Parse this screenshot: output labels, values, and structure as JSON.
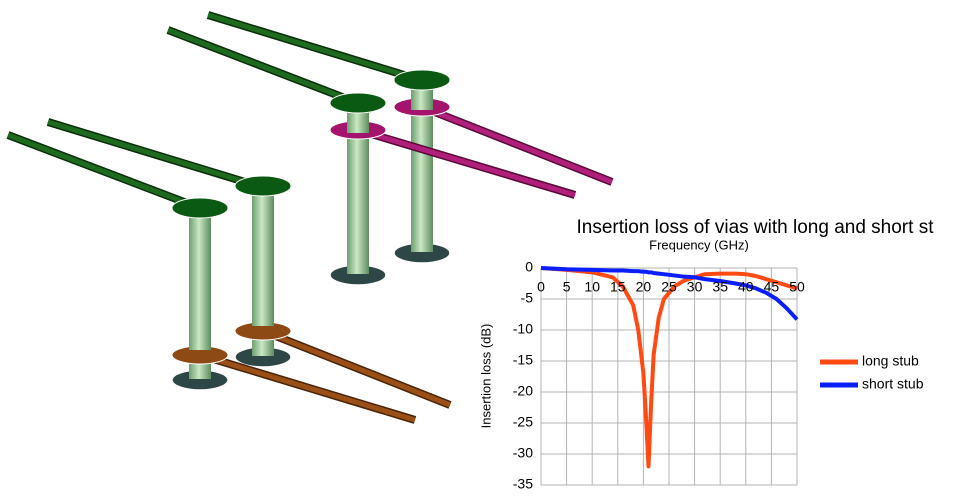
{
  "chart_data": {
    "type": "line",
    "title": "Insertion loss of vias with long and short st",
    "x_label": "Frequency (GHz)",
    "y_label": "Insertion loss (dB)",
    "x": [
      0,
      5,
      10,
      14,
      16,
      18,
      19,
      20,
      20.5,
      21,
      21.5,
      22,
      23,
      24,
      26,
      28,
      30,
      32,
      35,
      38,
      40,
      42,
      44,
      46,
      48,
      50
    ],
    "series": [
      {
        "name": "long stub",
        "color": "#ff4a12",
        "values": [
          0,
          -0.3,
          -0.7,
          -1.5,
          -3,
          -6,
          -10,
          -17,
          -24,
          -32,
          -22,
          -14,
          -8,
          -5,
          -3,
          -2,
          -1.5,
          -1,
          -0.9,
          -0.9,
          -1,
          -1.3,
          -1.8,
          -2.3,
          -2.8,
          -3.3
        ]
      },
      {
        "name": "short stub",
        "color": "#0a1eff",
        "values": [
          0,
          -0.2,
          -0.3,
          -0.4,
          -0.4,
          -0.5,
          -0.5,
          -0.6,
          -0.6,
          -0.7,
          -0.7,
          -0.8,
          -0.9,
          -1,
          -1.2,
          -1.4,
          -1.5,
          -1.8,
          -2.1,
          -2.5,
          -2.8,
          -3.3,
          -4,
          -5,
          -6.5,
          -8.3
        ]
      }
    ],
    "xlim": [
      0,
      50
    ],
    "xticks": [
      0,
      5,
      10,
      15,
      20,
      25,
      30,
      35,
      40,
      45,
      50
    ],
    "ylim": [
      -35,
      0
    ],
    "yticks": [
      0,
      -5,
      -10,
      -15,
      -20,
      -25,
      -30,
      -35
    ],
    "grid": true,
    "legend": "right"
  }
}
